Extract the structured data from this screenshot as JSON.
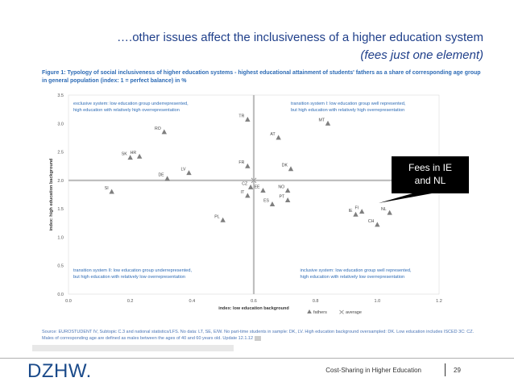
{
  "slide": {
    "title_line1": "….other issues affect the inclusiveness of a higher education system",
    "title_line2": "(fees just one element)",
    "figure_caption": "Figure 1: Typology of social inclusiveness of higher education systems - highest educational attainment of students' fathers as a share of corresponding age group in general population (index: 1 = perfect balance) in %",
    "source_note": "Source: EUROSTUDENT IV, Subtopic C.3 and national statistics/LFS. No data: LT, SE, E/W. No part-time students in sample: DK, LV. High education background oversampled: DK. Low education includes ISCED 3C: CZ. Males of corresponding age are defined as males between the ages of 40 and 60 years old. Update 12.1.12",
    "callout_line1": "Fees in IE",
    "callout_line2": "and NL",
    "footer_logo": "DZHW",
    "footer_logo_dot": ".",
    "footer_text": "Cost-Sharing in Higher Education",
    "page_number": "29"
  },
  "colors": {
    "title": "#1f3f8a",
    "caption": "#2d6bb5",
    "quadrant_text": "#2d6bb5",
    "marker": "#7f7f7f",
    "axis_line": "#bfbfbf",
    "callout_bg": "#000000"
  },
  "chart_data": {
    "type": "scatter",
    "xlabel": "index: low education background",
    "ylabel": "index: high education background",
    "xlim": [
      0.0,
      1.2
    ],
    "ylim": [
      0.0,
      3.5
    ],
    "xticks": [
      "0.0",
      "0.2",
      "0.4",
      "0.6",
      "0.8",
      "1.0",
      "1.2"
    ],
    "yticks": [
      "0.0",
      "0.5",
      "1.0",
      "1.5",
      "2.0",
      "2.5",
      "3.0",
      "3.5"
    ],
    "reference_lines": {
      "x": 0.6,
      "y": 2.0
    },
    "average_point": {
      "x": 0.6,
      "y": 2.0
    },
    "legend": [
      "fathers",
      "average"
    ],
    "quadrant_labels": [
      {
        "name": "exclusive system",
        "line1": "exclusive system: low education group underrepresented,",
        "line2": "high education with relatively high overrepresentation"
      },
      {
        "name": "transition system I",
        "line1": "transition system I: low education group well represented,",
        "line2": "but high education with relatively high overrepresentation"
      },
      {
        "name": "transition system II",
        "line1": "transition system II: low education group underrepresented,",
        "line2": "but high education with relatively low overrepresentation"
      },
      {
        "name": "inclusive system",
        "line1": "inclusive system: low education group well represented,",
        "line2": "high education with relatively low overrepresentation"
      }
    ],
    "points": [
      {
        "label": "TR",
        "x": 0.58,
        "y": 3.07
      },
      {
        "label": "MT",
        "x": 0.84,
        "y": 3.0
      },
      {
        "label": "RO",
        "x": 0.31,
        "y": 2.85
      },
      {
        "label": "AT",
        "x": 0.68,
        "y": 2.75
      },
      {
        "label": "SK",
        "x": 0.2,
        "y": 2.4
      },
      {
        "label": "HR",
        "x": 0.23,
        "y": 2.42
      },
      {
        "label": "FR",
        "x": 0.58,
        "y": 2.25
      },
      {
        "label": "DK",
        "x": 0.72,
        "y": 2.2
      },
      {
        "label": "LV",
        "x": 0.39,
        "y": 2.13
      },
      {
        "label": "DE",
        "x": 0.32,
        "y": 2.03
      },
      {
        "label": "CZ",
        "x": 0.59,
        "y": 1.88
      },
      {
        "label": "EE",
        "x": 0.63,
        "y": 1.82
      },
      {
        "label": "NO",
        "x": 0.71,
        "y": 1.82
      },
      {
        "label": "SI",
        "x": 0.14,
        "y": 1.8
      },
      {
        "label": "IT",
        "x": 0.58,
        "y": 1.73
      },
      {
        "label": "PT",
        "x": 0.71,
        "y": 1.65
      },
      {
        "label": "ES",
        "x": 0.66,
        "y": 1.58
      },
      {
        "label": "FI",
        "x": 0.95,
        "y": 1.45
      },
      {
        "label": "IE",
        "x": 0.93,
        "y": 1.4
      },
      {
        "label": "NL",
        "x": 1.04,
        "y": 1.43
      },
      {
        "label": "CH",
        "x": 1.0,
        "y": 1.22
      },
      {
        "label": "PL",
        "x": 0.5,
        "y": 1.3
      }
    ]
  }
}
